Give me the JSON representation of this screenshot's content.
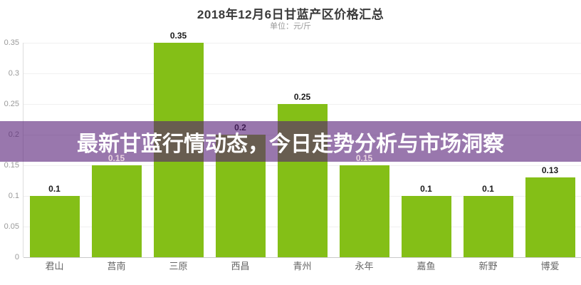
{
  "header": {
    "title": "2018年12月6日甘蓝产区价格汇总",
    "subtitle": "单位：元/斤"
  },
  "banner": {
    "text": "最新甘蓝行情动态，今日走势分析与市场洞察",
    "overlay_color": "rgba(85,28,118,0.60)",
    "text_color": "#ffffff"
  },
  "chart_data": {
    "type": "bar",
    "title": "2018年12月6日甘蓝产区价格汇总",
    "unit": "元/斤",
    "categories": [
      "君山",
      "莒南",
      "三原",
      "西昌",
      "青州",
      "永年",
      "嘉鱼",
      "新野",
      "博爱"
    ],
    "values": [
      0.1,
      0.15,
      0.35,
      0.2,
      0.25,
      0.15,
      0.1,
      0.1,
      0.13
    ],
    "value_labels": [
      "0.1",
      "0.15",
      "0.35",
      "0.2",
      "0.25",
      "0.15",
      "0.1",
      "0.1",
      "0.13"
    ],
    "pale_label_indices": [
      1,
      5
    ],
    "xlabel": "",
    "ylabel": "",
    "ylim": [
      0,
      0.35
    ],
    "yticks": [
      0,
      0.05,
      0.1,
      0.15,
      0.2,
      0.25,
      0.3,
      0.35
    ],
    "grid": true,
    "legend": false,
    "bar_color": "#84bf17",
    "gridline_color": "#f0f0f0",
    "axis_color": "#c9c9c9"
  }
}
